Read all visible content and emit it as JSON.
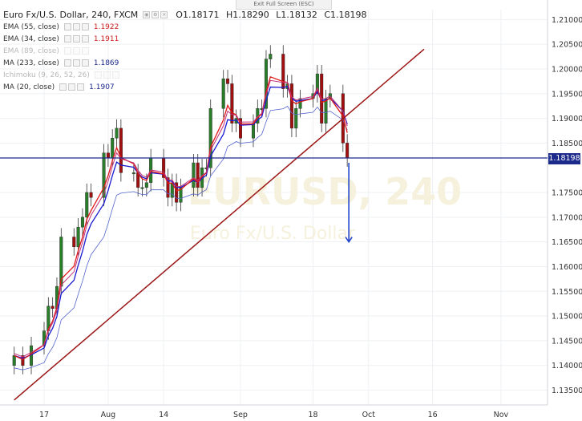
{
  "header": {
    "symbol": "Euro Fx/U.S. Dollar, 240, FXCM",
    "open": "O1.18171",
    "high": "H1.18290",
    "low": "L1.18132",
    "close": "C1.18198"
  },
  "exit_fullscreen_label": "Exit Full Screen (ESC)",
  "indicators": [
    {
      "label": "EMA (55, close)",
      "value": "1.1922",
      "color": "#d01c1c",
      "faded": false
    },
    {
      "label": "EMA (34, close)",
      "value": "1.1911",
      "color": "#d01c1c",
      "faded": false
    },
    {
      "label": "EMA (89, close)",
      "value": "",
      "color": "#888888",
      "faded": true
    },
    {
      "label": "MA (233, close)",
      "value": "1.1869",
      "color": "#1c2a8c",
      "faded": false
    },
    {
      "label": "Ichimoku (9, 26, 52, 26)",
      "value": "",
      "color": "#888888",
      "faded": true
    },
    {
      "label": "MA (20, close)",
      "value": "1.1907",
      "color": "#1c2a8c",
      "faded": false
    }
  ],
  "watermark": {
    "line1": "EURUSD, 240",
    "line2": "Euro Fx/U.S. Dollar"
  },
  "current_price_label": "1.18198",
  "colors": {
    "bull": "#2a7d2a",
    "bear": "#a01010",
    "ema_red": "#e01818",
    "ma_blue": "#1a1ad0",
    "ma233": "#5566cc",
    "trend": "#9b1515",
    "hline": "#1c2a8c",
    "arrow": "#2244cc"
  },
  "chart_data": {
    "type": "candlestick",
    "ylim": [
      1.132,
      1.212
    ],
    "y_ticks": [
      "1.21000",
      "1.20500",
      "1.20000",
      "1.19500",
      "1.19000",
      "1.18500",
      "1.18198",
      "1.17500",
      "1.17000",
      "1.16500",
      "1.16000",
      "1.15500",
      "1.15000",
      "1.14500",
      "1.14000",
      "1.13500"
    ],
    "x_ticks": [
      "17",
      "Aug",
      "14",
      "Sep",
      "18",
      "Oct",
      "16",
      "Nov"
    ],
    "x_tick_dates": [
      "2017-07-17",
      "2017-08-01",
      "2017-08-14",
      "2017-09-01",
      "2017-09-18",
      "2017-10-01",
      "2017-10-16",
      "2017-11-01"
    ],
    "candles_close": [
      {
        "d": "2017-07-10",
        "c": 1.142
      },
      {
        "d": "2017-07-12",
        "c": 1.14
      },
      {
        "d": "2017-07-14",
        "c": 1.144
      },
      {
        "d": "2017-07-17",
        "c": 1.147
      },
      {
        "d": "2017-07-18",
        "c": 1.152
      },
      {
        "d": "2017-07-19",
        "c": 1.1515
      },
      {
        "d": "2017-07-20",
        "c": 1.156
      },
      {
        "d": "2017-07-21",
        "c": 1.166
      },
      {
        "d": "2017-07-24",
        "c": 1.164
      },
      {
        "d": "2017-07-25",
        "c": 1.168
      },
      {
        "d": "2017-07-26",
        "c": 1.17
      },
      {
        "d": "2017-07-27",
        "c": 1.175
      },
      {
        "d": "2017-07-28",
        "c": 1.174
      },
      {
        "d": "2017-07-31",
        "c": 1.183
      },
      {
        "d": "2017-08-01",
        "c": 1.182
      },
      {
        "d": "2017-08-02",
        "c": 1.186
      },
      {
        "d": "2017-08-03",
        "c": 1.188
      },
      {
        "d": "2017-08-04",
        "c": 1.179
      },
      {
        "d": "2017-08-07",
        "c": 1.179
      },
      {
        "d": "2017-08-08",
        "c": 1.176
      },
      {
        "d": "2017-08-09",
        "c": 1.176
      },
      {
        "d": "2017-08-10",
        "c": 1.177
      },
      {
        "d": "2017-08-11",
        "c": 1.182
      },
      {
        "d": "2017-08-14",
        "c": 1.178
      },
      {
        "d": "2017-08-15",
        "c": 1.174
      },
      {
        "d": "2017-08-16",
        "c": 1.177
      },
      {
        "d": "2017-08-17",
        "c": 1.173
      },
      {
        "d": "2017-08-18",
        "c": 1.176
      },
      {
        "d": "2017-08-21",
        "c": 1.181
      },
      {
        "d": "2017-08-22",
        "c": 1.176
      },
      {
        "d": "2017-08-23",
        "c": 1.18
      },
      {
        "d": "2017-08-24",
        "c": 1.18
      },
      {
        "d": "2017-08-25",
        "c": 1.192
      },
      {
        "d": "2017-08-28",
        "c": 1.198
      },
      {
        "d": "2017-08-29",
        "c": 1.197
      },
      {
        "d": "2017-08-30",
        "c": 1.189
      },
      {
        "d": "2017-08-31",
        "c": 1.19
      },
      {
        "d": "2017-09-01",
        "c": 1.186
      },
      {
        "d": "2017-09-04",
        "c": 1.189
      },
      {
        "d": "2017-09-05",
        "c": 1.192
      },
      {
        "d": "2017-09-06",
        "c": 1.192
      },
      {
        "d": "2017-09-07",
        "c": 1.202
      },
      {
        "d": "2017-09-08",
        "c": 1.203
      },
      {
        "d": "2017-09-11",
        "c": 1.196
      },
      {
        "d": "2017-09-12",
        "c": 1.197
      },
      {
        "d": "2017-09-13",
        "c": 1.188
      },
      {
        "d": "2017-09-14",
        "c": 1.192
      },
      {
        "d": "2017-09-15",
        "c": 1.194
      },
      {
        "d": "2017-09-18",
        "c": 1.195
      },
      {
        "d": "2017-09-19",
        "c": 1.199
      },
      {
        "d": "2017-09-20",
        "c": 1.189
      },
      {
        "d": "2017-09-21",
        "c": 1.194
      },
      {
        "d": "2017-09-22",
        "c": 1.195
      },
      {
        "d": "2017-09-25",
        "c": 1.185
      },
      {
        "d": "2017-09-26",
        "c": 1.182
      }
    ],
    "trendline": [
      {
        "d": "2017-07-10",
        "y": 1.133
      },
      {
        "d": "2017-10-14",
        "y": 1.204
      }
    ],
    "horizontal_line": 1.18198,
    "projection": {
      "from": {
        "d": "2017-09-26",
        "y": 1.181
      },
      "to": {
        "d": "2017-09-26",
        "y": 1.165
      }
    }
  }
}
